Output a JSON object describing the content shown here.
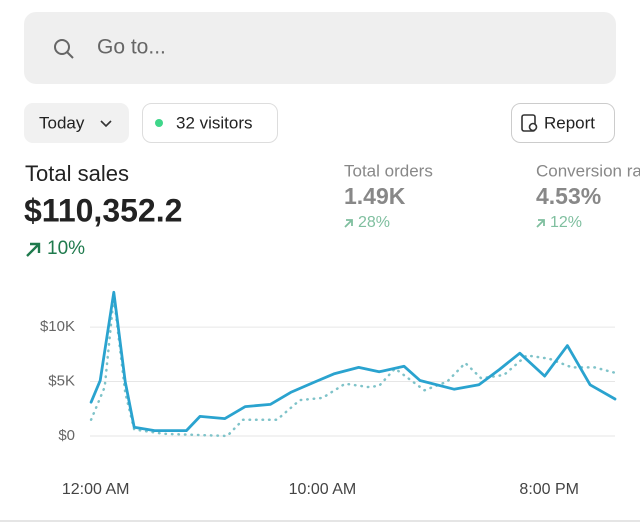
{
  "search": {
    "placeholder": "Go to..."
  },
  "toolbar": {
    "period": "Today",
    "visitors": "32 visitors",
    "report": "Report"
  },
  "metrics": [
    {
      "label": "Total sales",
      "value": "$110,352.2",
      "change": "10%"
    },
    {
      "label": "Total orders",
      "value": "1.49K",
      "change": "28%"
    },
    {
      "label": "Conversion rate",
      "value": "4.53%",
      "change": "12%"
    }
  ],
  "chart_data": {
    "type": "line",
    "xlim": [
      -0.25,
      22.9
    ],
    "ylim": [
      0,
      13500
    ],
    "xticks": [
      {
        "value": 0,
        "label": "12:00 AM"
      },
      {
        "value": 10,
        "label": "10:00 AM"
      },
      {
        "value": 20,
        "label": "8:00 PM"
      }
    ],
    "yticks": [
      {
        "value": 0,
        "label": "$0"
      },
      {
        "value": 5000,
        "label": "$5K"
      },
      {
        "value": 10000,
        "label": "$10K"
      }
    ],
    "grid": true,
    "series": [
      {
        "color": "#7fc3c9",
        "dashed": true,
        "x": [
          -0.2,
          0.4,
          0.8,
          1.3,
          1.7,
          3,
          5.8,
          6.5,
          8,
          9,
          10,
          11,
          12,
          12.5,
          13.2,
          14.5,
          15.5,
          16.3,
          17,
          18,
          19,
          20,
          21,
          22,
          22.9
        ],
        "values": [
          1500,
          4500,
          12800,
          4000,
          600,
          200,
          0,
          1500,
          1500,
          3300,
          3500,
          4800,
          4500,
          4600,
          6200,
          4200,
          5000,
          6700,
          5300,
          5600,
          7400,
          7100,
          6300,
          6300,
          5800
        ]
      },
      {
        "color": "#2aa3cf",
        "x": [
          -0.2,
          0.2,
          0.8,
          1.3,
          1.7,
          2.6,
          4,
          4.6,
          5.7,
          6.6,
          7.7,
          8.6,
          9.7,
          10.5,
          11.6,
          12.5,
          13.6,
          14.3,
          15.8,
          16.9,
          17.8,
          18.7,
          19.8,
          20.8,
          21.8,
          22.9
        ],
        "values": [
          3100,
          5100,
          13200,
          5000,
          800,
          500,
          500,
          1800,
          1600,
          2700,
          2900,
          4000,
          5000,
          5700,
          6300,
          5900,
          6400,
          5100,
          4300,
          4700,
          6100,
          7600,
          5500,
          8300,
          4700,
          3400
        ]
      }
    ]
  }
}
